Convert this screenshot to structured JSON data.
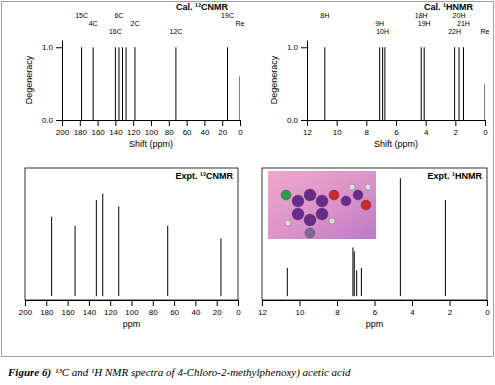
{
  "chart_data": [
    {
      "type": "stem",
      "title": "Cal. ¹³CNMR",
      "x_label": "Shift (ppm)",
      "y_label": "Degeneracy",
      "x": [
        178,
        165,
        140,
        136,
        132,
        128,
        118,
        72,
        14,
        0
      ],
      "values": [
        1,
        1,
        1,
        1,
        1,
        1,
        1,
        1,
        1,
        0.6
      ],
      "peak_labels": [
        "15C",
        "4C",
        "16C",
        "6C",
        null,
        null,
        "2C",
        "12C",
        "19C",
        "Re"
      ],
      "xlim": [
        200,
        0
      ],
      "xticks": [
        200,
        180,
        160,
        140,
        120,
        100,
        80,
        60,
        40,
        20,
        0
      ],
      "ylim": [
        0,
        1.1
      ],
      "yticks": [
        {
          "value": 0,
          "label": "0.0"
        },
        {
          "value": 1,
          "label": "1.0"
        }
      ],
      "color": "#000000"
    },
    {
      "type": "stem",
      "title": "Cal. ¹HNMR",
      "x_label": "Shift (ppm)",
      "y_label": "Degeneracy",
      "x": [
        10.8,
        7.1,
        6.9,
        6.75,
        4.3,
        4.1,
        2.05,
        1.75,
        1.45,
        0
      ],
      "values": [
        1,
        1,
        1,
        1,
        1,
        1,
        1,
        1,
        1,
        0.5
      ],
      "peak_labels": [
        "8H",
        "9H",
        "10H",
        null,
        "18H",
        "19H",
        "22H",
        "20H",
        "21H",
        "Re"
      ],
      "xlim": [
        12,
        0
      ],
      "xticks": [
        12,
        10,
        8,
        6,
        4,
        2,
        0
      ],
      "ylim": [
        0,
        1.1
      ],
      "yticks": [
        {
          "value": 0,
          "label": "0.0"
        },
        {
          "value": 1,
          "label": "1.0"
        }
      ],
      "color": "#000000"
    },
    {
      "type": "stem",
      "title": "Expt. ¹³CNMR",
      "x_label": "ppm",
      "x": [
        175,
        153,
        133,
        127,
        112,
        66,
        16
      ],
      "values": [
        0.62,
        0.55,
        0.75,
        0.8,
        0.7,
        0.55,
        0.45
      ],
      "xlim": [
        200,
        0
      ],
      "xticks": [
        200,
        180,
        160,
        140,
        120,
        100,
        80,
        60,
        40,
        20,
        0
      ],
      "ylim": [
        -0.03,
        1
      ],
      "tick_labels": "x",
      "color": "#000000"
    },
    {
      "type": "stem",
      "title": "Expt. ¹HNMR",
      "x_label": "ppm",
      "x": [
        10.65,
        7.15,
        7.08,
        6.95,
        6.7,
        4.62,
        2.22
      ],
      "values": [
        0.22,
        0.38,
        0.35,
        0.2,
        0.22,
        0.92,
        0.75
      ],
      "xlim": [
        12,
        0
      ],
      "xticks": [
        12,
        10,
        8,
        6,
        4,
        2,
        0
      ],
      "ylim": [
        -0.03,
        1
      ],
      "tick_labels": "x",
      "color": "#000000"
    }
  ],
  "figure": {
    "label": "Figure 6)",
    "caption": "¹³C and ¹H NMR spectra of 4-Chloro-2-methylphenoxy) acetic acid"
  }
}
